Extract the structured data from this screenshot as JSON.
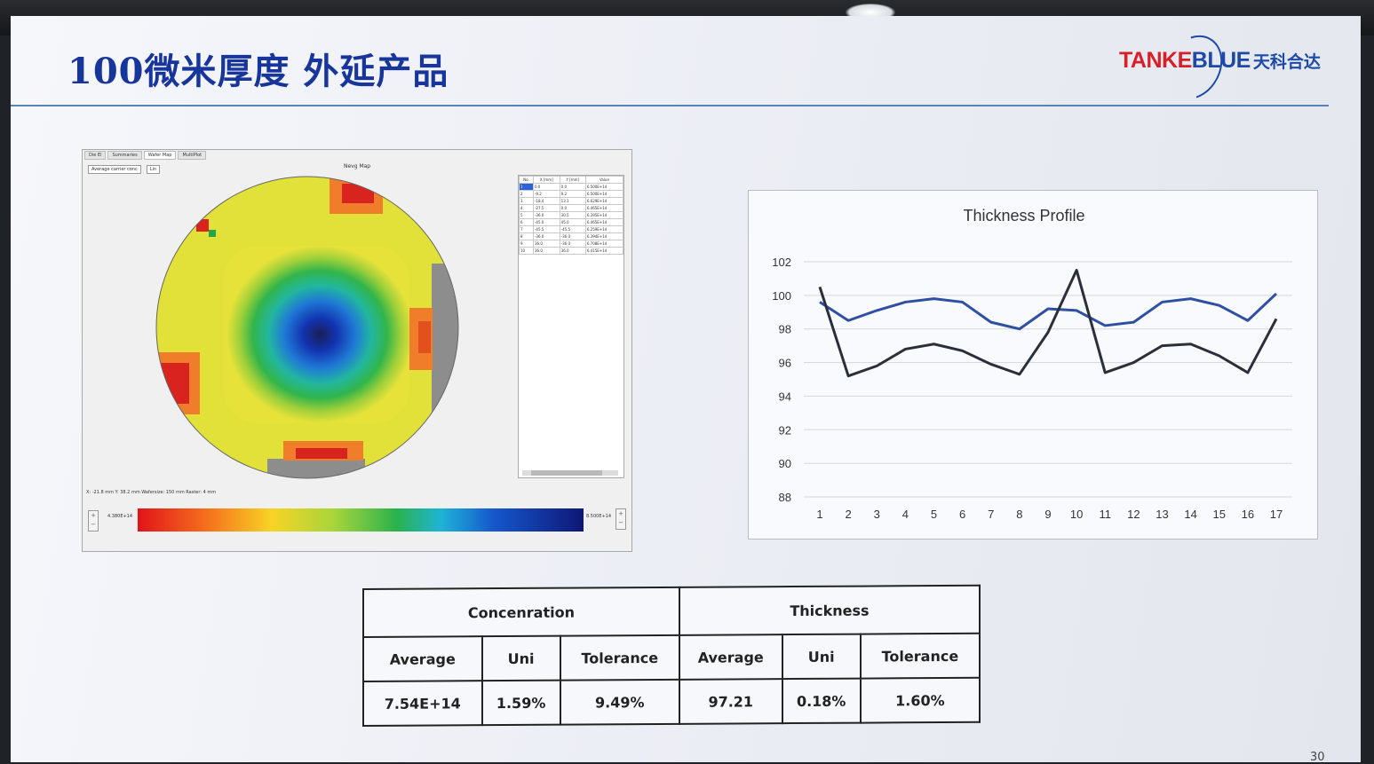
{
  "slide": {
    "title": "100微米厚度 外延产品",
    "logo_en_red1": "TANK",
    "logo_en_red2": "E",
    "logo_en_blue": "BLUE",
    "logo_cn": "天科合达",
    "page_number": "30"
  },
  "colors": {
    "title": "#17359a",
    "logo_red": "#d61f26",
    "logo_blue": "#1d4aa6",
    "series_blue": "#2f4fa3",
    "series_dark": "#2b2f3a"
  },
  "app": {
    "tabs": [
      "Die El",
      "Summaries",
      "Wafer Map",
      "MultiPlot"
    ],
    "selects": [
      "Average carrier conc",
      "Lin"
    ],
    "map_title": "Nevg Map",
    "table_headers": [
      "No.",
      "X [mm]",
      "Y [mm]",
      "Value"
    ],
    "table_rows": [
      [
        "1",
        "0.0",
        "0.0",
        "6.500E+14"
      ],
      [
        "2",
        "-9.2",
        "9.2",
        "6.500E+14"
      ],
      [
        "3",
        "-18.4",
        "13.1",
        "6.629E+14"
      ],
      [
        "4",
        "-27.5",
        "0.0",
        "6.465E+14"
      ],
      [
        "5",
        "-36.0",
        "30.5",
        "6.395E+14"
      ],
      [
        "6",
        "-45.0",
        "45.0",
        "6.465E+14"
      ],
      [
        "7",
        "-45.5",
        "-45.5",
        "6.259E+14"
      ],
      [
        "8",
        "-36.0",
        "-36.0",
        "6.394E+14"
      ],
      [
        "9",
        "36.0",
        "-36.0",
        "6.708E+14"
      ],
      [
        "10",
        "36.0",
        "36.0",
        "6.415E+14"
      ]
    ],
    "status": "X: -21.8 mm  Y: 38.2 mm    Wafersize: 150 mm Raster: 4 mm",
    "legend_min": "4.380E+14",
    "legend_max": "8.500E+14"
  },
  "chart_data": {
    "type": "line",
    "title": "Thickness Profile",
    "xlabel": "",
    "ylabel": "",
    "categories": [
      "1",
      "2",
      "3",
      "4",
      "5",
      "6",
      "7",
      "8",
      "9",
      "10",
      "11",
      "12",
      "13",
      "14",
      "15",
      "16",
      "17"
    ],
    "ylim": [
      88,
      102
    ],
    "yticks": [
      88,
      90,
      92,
      94,
      96,
      98,
      100,
      102
    ],
    "grid": true,
    "series": [
      {
        "color": "#2f4fa3",
        "values": [
          99.6,
          98.5,
          99.1,
          99.6,
          99.8,
          99.6,
          98.4,
          98.0,
          99.2,
          99.1,
          98.2,
          98.4,
          99.6,
          99.8,
          99.4,
          98.5,
          100.1
        ]
      },
      {
        "color": "#2b2f3a",
        "values": [
          100.5,
          95.2,
          95.8,
          96.8,
          97.1,
          96.7,
          95.9,
          95.3,
          97.8,
          101.5,
          95.4,
          96.0,
          97.0,
          97.1,
          96.4,
          95.4,
          98.6
        ]
      }
    ]
  },
  "table": {
    "group1": "Concenration",
    "group2": "Thickness",
    "headers": [
      "Average",
      "Uni",
      "Tolerance",
      "Average",
      "Uni",
      "Tolerance"
    ],
    "values": [
      "7.54E+14",
      "1.59%",
      "9.49%",
      "97.21",
      "0.18%",
      "1.60%"
    ]
  }
}
